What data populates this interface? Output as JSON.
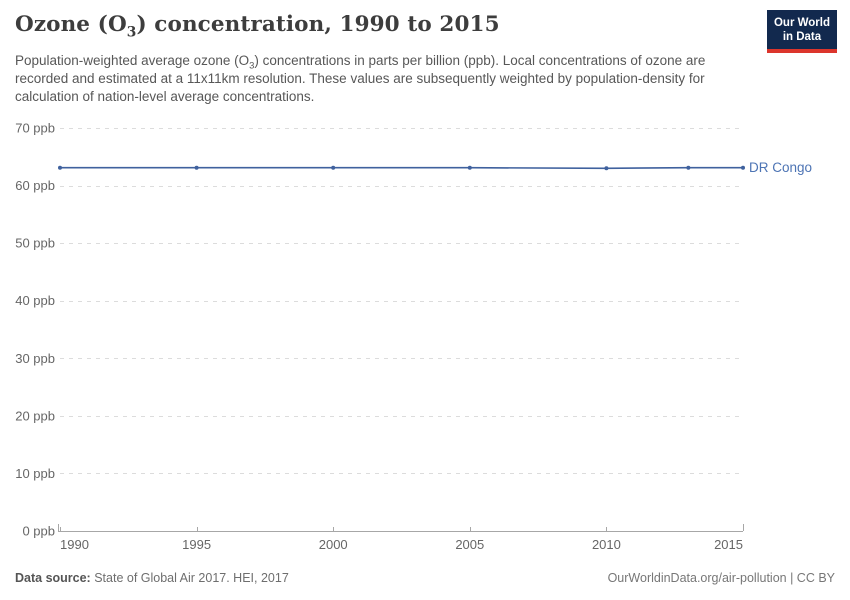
{
  "header": {
    "title": {
      "pre": "Ozone (O",
      "sub": "3",
      "post": ") concentration, 1990 to 2015"
    },
    "subtitle": {
      "pre": "Population-weighted average ozone (O",
      "sub": "3",
      "post": ") concentrations in parts per billion (ppb). Local concentrations of ozone are recorded and estimated at a 11x11km resolution. These values are subsequently weighted by population-density for calculation of nation-level average concentrations."
    },
    "logo": {
      "line1": "Our World",
      "line2": "in Data",
      "bg_color": "#12294e",
      "accent_color": "#dc352c"
    }
  },
  "footer": {
    "source_label": "Data source:",
    "source_text": " State of Global Air 2017. HEI, 2017",
    "attribution": "OurWorldinData.org/air-pollution | CC BY"
  },
  "chart_data": {
    "type": "line",
    "title": "Ozone (O₃) concentration, 1990 to 2015",
    "unit": "ppb",
    "x": [
      1990,
      1995,
      2000,
      2005,
      2010,
      2013,
      2015
    ],
    "series": [
      {
        "name": "DR Congo",
        "values": [
          63.1,
          63.1,
          63.1,
          63.1,
          63.0,
          63.1,
          63.1
        ],
        "color": "#3f619e",
        "label_color": "#4d74b4"
      }
    ],
    "x_ticks": [
      1990,
      1995,
      2000,
      2005,
      2010,
      2015
    ],
    "y_ticks": [
      0,
      10,
      20,
      30,
      40,
      50,
      60,
      70
    ],
    "y_tick_suffix": " ppb",
    "xlim": [
      1990,
      2015
    ],
    "ylim": [
      0,
      70
    ],
    "grid": "dashed horizontal gridlines",
    "grid_color": "#dcdcdc",
    "axis_color": "#a7a7a7",
    "tick_label_color": "#666666",
    "legend_position": "right-of-line"
  }
}
